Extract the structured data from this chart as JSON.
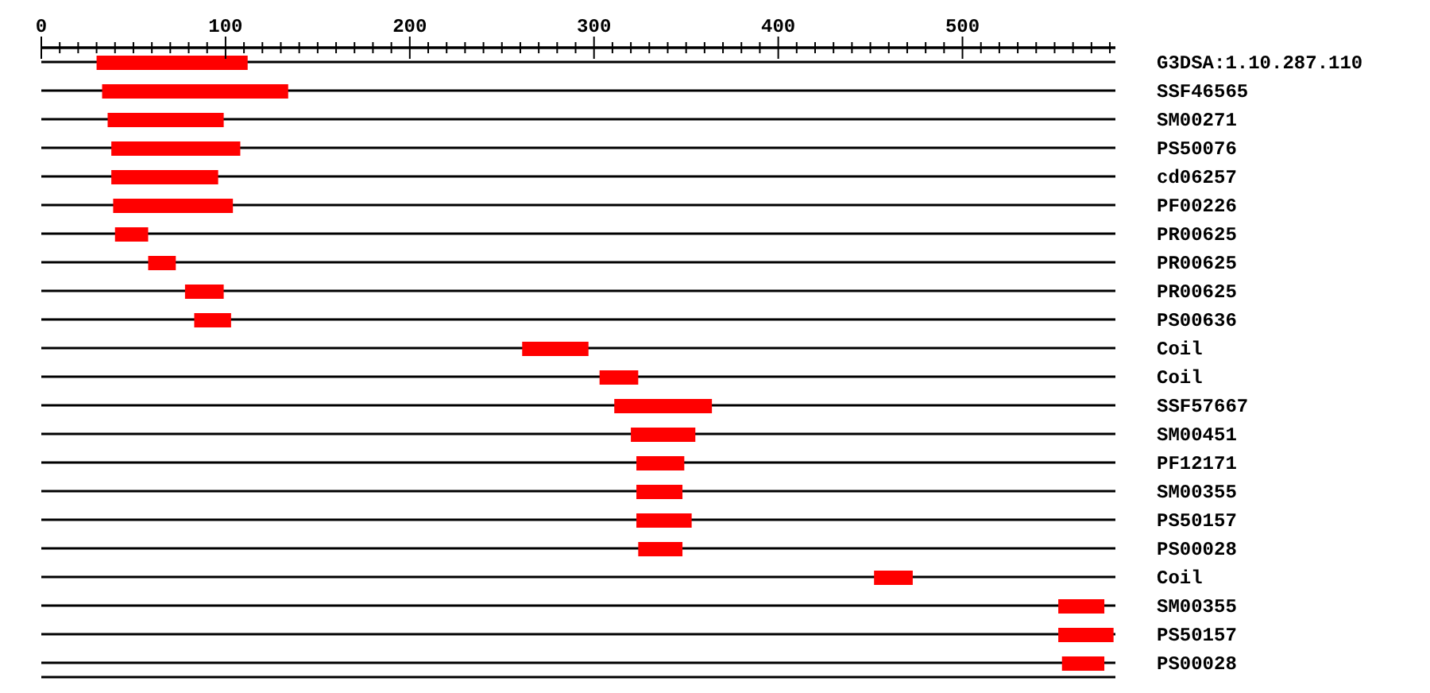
{
  "chart_data": {
    "type": "bar",
    "orientation": "horizontal",
    "categories": [
      "G3DSA:1.10.287.110",
      "SSF46565",
      "SM00271",
      "PS50076",
      "cd06257",
      "PF00226",
      "PR00625",
      "PR00625",
      "PR00625",
      "PS00636",
      "Coil",
      "Coil",
      "SSF57667",
      "SM00451",
      "PF12171",
      "SM00355",
      "PS50157",
      "PS00028",
      "Coil",
      "SM00355",
      "PS50157",
      "PS00028"
    ],
    "base": [
      30,
      33,
      36,
      38,
      38,
      39,
      40,
      58,
      78,
      83,
      261,
      303,
      311,
      320,
      323,
      323,
      323,
      324,
      452,
      552,
      552,
      554
    ],
    "values": [
      82,
      101,
      63,
      70,
      58,
      65,
      18,
      15,
      21,
      20,
      36,
      21,
      53,
      35,
      26,
      25,
      30,
      24,
      21,
      25,
      30,
      23
    ],
    "color": "#ff0000",
    "xlim": [
      0,
      583
    ],
    "xticks": [
      0,
      {
        "value": 10,
        "label": null
      },
      {
        "value": 20,
        "label": null
      },
      {
        "value": 30,
        "label": null
      },
      {
        "value": 40,
        "label": null
      },
      {
        "value": 50,
        "label": null
      },
      {
        "value": 60,
        "label": null
      },
      {
        "value": 70,
        "label": null
      },
      {
        "value": 80,
        "label": null
      },
      {
        "value": 90,
        "label": null
      },
      100,
      {
        "value": 110,
        "label": null
      },
      {
        "value": 120,
        "label": null
      },
      {
        "value": 130,
        "label": null
      },
      {
        "value": 140,
        "label": null
      },
      {
        "value": 150,
        "label": null
      },
      {
        "value": 160,
        "label": null
      },
      {
        "value": 170,
        "label": null
      },
      {
        "value": 180,
        "label": null
      },
      {
        "value": 190,
        "label": null
      },
      200,
      {
        "value": 210,
        "label": null
      },
      {
        "value": 220,
        "label": null
      },
      {
        "value": 230,
        "label": null
      },
      {
        "value": 240,
        "label": null
      },
      {
        "value": 250,
        "label": null
      },
      {
        "value": 260,
        "label": null
      },
      {
        "value": 270,
        "label": null
      },
      {
        "value": 280,
        "label": null
      },
      {
        "value": 290,
        "label": null
      },
      300,
      {
        "value": 310,
        "label": null
      },
      {
        "value": 320,
        "label": null
      },
      {
        "value": 330,
        "label": null
      },
      {
        "value": 340,
        "label": null
      },
      {
        "value": 350,
        "label": null
      },
      {
        "value": 360,
        "label": null
      },
      {
        "value": 370,
        "label": null
      },
      {
        "value": 380,
        "label": null
      },
      {
        "value": 390,
        "label": null
      },
      400,
      {
        "value": 410,
        "label": null
      },
      {
        "value": 420,
        "label": null
      },
      {
        "value": 430,
        "label": null
      },
      {
        "value": 440,
        "label": null
      },
      {
        "value": 450,
        "label": null
      },
      {
        "value": 460,
        "label": null
      },
      {
        "value": 470,
        "label": null
      },
      {
        "value": 480,
        "label": null
      },
      {
        "value": 490,
        "label": null
      },
      500,
      {
        "value": 510,
        "label": null
      },
      {
        "value": 520,
        "label": null
      },
      {
        "value": 530,
        "label": null
      },
      {
        "value": 540,
        "label": null
      },
      {
        "value": 550,
        "label": null
      },
      {
        "value": 560,
        "label": null
      },
      {
        "value": 570,
        "label": null
      },
      {
        "value": 580,
        "label": null
      }
    ],
    "grid": "y",
    "legend": false
  }
}
